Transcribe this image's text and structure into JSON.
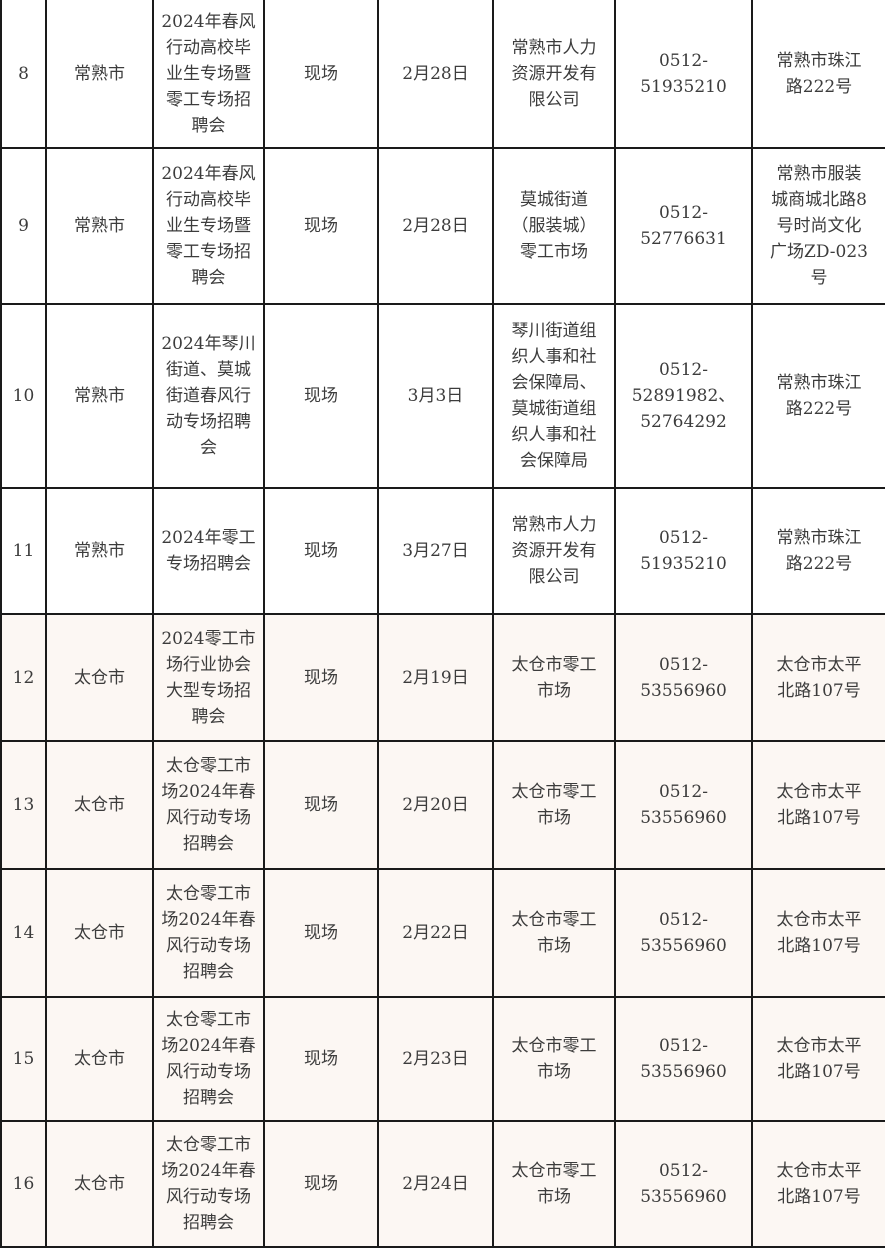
{
  "colors": {
    "border": "#1a1a1a",
    "text": "#3c3c3c",
    "taicang_row_bg": "#fcf7f3"
  },
  "rows": [
    {
      "no": "8",
      "city": "常熟市",
      "event": "2024年春风\n行动高校毕\n业生专场暨\n零工专场招\n聘会",
      "type": "现场",
      "date": "2月28日",
      "organizer": "常熟市人力\n资源开发有\n限公司",
      "phone": "0512-\n51935210",
      "address": "常熟市珠江\n路222号"
    },
    {
      "no": "9",
      "city": "常熟市",
      "event": "2024年春风\n行动高校毕\n业生专场暨\n零工专场招\n聘会",
      "type": "现场",
      "date": "2月28日",
      "organizer": "莫城街道\n（服装城）\n零工市场",
      "phone": "0512-\n52776631",
      "address": "常熟市服装\n城商城北路8\n号时尚文化\n广场ZD-023\n号"
    },
    {
      "no": "10",
      "city": "常熟市",
      "event": "2024年琴川\n街道、莫城\n街道春风行\n动专场招聘\n会",
      "type": "现场",
      "date": "3月3日",
      "organizer": "琴川街道组\n织人事和社\n会保障局、\n莫城街道组\n织人事和社\n会保障局",
      "phone": "0512-\n52891982、\n52764292",
      "address": "常熟市珠江\n路222号"
    },
    {
      "no": "11",
      "city": "常熟市",
      "event": "2024年零工\n专场招聘会",
      "type": "现场",
      "date": "3月27日",
      "organizer": "常熟市人力\n资源开发有\n限公司",
      "phone": "0512-\n51935210",
      "address": "常熟市珠江\n路222号"
    },
    {
      "no": "12",
      "city": "太仓市",
      "event": "2024零工市\n场行业协会\n大型专场招\n聘会",
      "type": "现场",
      "date": "2月19日",
      "organizer": "太仓市零工\n市场",
      "phone": "0512-\n53556960",
      "address": "太仓市太平\n北路107号"
    },
    {
      "no": "13",
      "city": "太仓市",
      "event": "太仓零工市\n场2024年春\n风行动专场\n招聘会",
      "type": "现场",
      "date": "2月20日",
      "organizer": "太仓市零工\n市场",
      "phone": "0512-\n53556960",
      "address": "太仓市太平\n北路107号"
    },
    {
      "no": "14",
      "city": "太仓市",
      "event": "太仓零工市\n场2024年春\n风行动专场\n招聘会",
      "type": "现场",
      "date": "2月22日",
      "organizer": "太仓市零工\n市场",
      "phone": "0512-\n53556960",
      "address": "太仓市太平\n北路107号"
    },
    {
      "no": "15",
      "city": "太仓市",
      "event": "太仓零工市\n场2024年春\n风行动专场\n招聘会",
      "type": "现场",
      "date": "2月23日",
      "organizer": "太仓市零工\n市场",
      "phone": "0512-\n53556960",
      "address": "太仓市太平\n北路107号"
    },
    {
      "no": "16",
      "city": "太仓市",
      "event": "太仓零工市\n场2024年春\n风行动专场\n招聘会",
      "type": "现场",
      "date": "2月24日",
      "organizer": "太仓市零工\n市场",
      "phone": "0512-\n53556960",
      "address": "太仓市太平\n北路107号"
    }
  ]
}
